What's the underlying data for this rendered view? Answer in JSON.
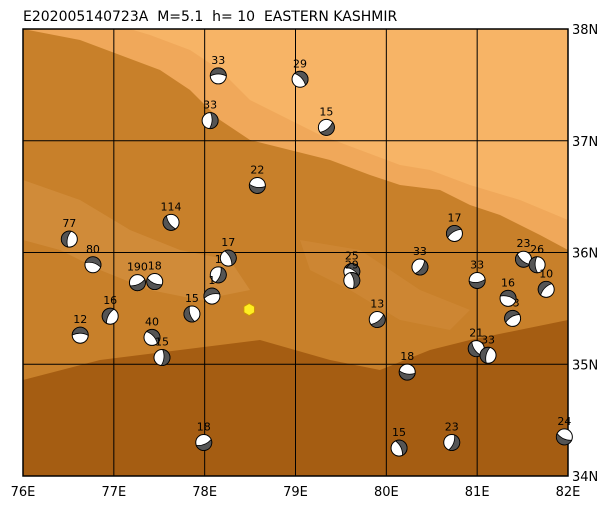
{
  "title": "E202005140723A  M=5.1  h= 10  EASTERN KASHMIR",
  "map": {
    "lonlim": [
      76,
      82
    ],
    "latlim": [
      34,
      38
    ],
    "lonticks": [
      {
        "value": 76,
        "label": "76E"
      },
      {
        "value": 77,
        "label": "77E"
      },
      {
        "value": 78,
        "label": "78E"
      },
      {
        "value": 79,
        "label": "79E"
      },
      {
        "value": 80,
        "label": "80E"
      },
      {
        "value": 81,
        "label": "81E"
      },
      {
        "value": 82,
        "label": "82E"
      }
    ],
    "latticks": [
      {
        "value": 34,
        "label": "34N"
      },
      {
        "value": 35,
        "label": "35N"
      },
      {
        "value": 36,
        "label": "36N"
      },
      {
        "value": 37,
        "label": "37N"
      },
      {
        "value": 38,
        "label": "38N"
      }
    ],
    "epicenter": {
      "lon": 78.49,
      "lat": 35.49,
      "color": "#ffee22"
    },
    "events": [
      {
        "label": "33",
        "lon": 78.15,
        "lat": 37.58
      },
      {
        "label": "29",
        "lon": 79.05,
        "lat": 37.55
      },
      {
        "label": "33",
        "lon": 78.06,
        "lat": 37.18
      },
      {
        "label": "15",
        "lon": 79.34,
        "lat": 37.12
      },
      {
        "label": "22",
        "lon": 78.58,
        "lat": 36.6
      },
      {
        "label": "114",
        "lon": 77.63,
        "lat": 36.27
      },
      {
        "label": "77",
        "lon": 76.51,
        "lat": 36.12
      },
      {
        "label": "17",
        "lon": 80.75,
        "lat": 36.17
      },
      {
        "label": "80",
        "lon": 76.77,
        "lat": 35.89
      },
      {
        "label": "17",
        "lon": 78.26,
        "lat": 35.95
      },
      {
        "label": "1",
        "lon": 78.15,
        "lat": 35.8
      },
      {
        "label": "190",
        "lon": 77.26,
        "lat": 35.73
      },
      {
        "label": "18",
        "lon": 77.45,
        "lat": 35.74
      },
      {
        "label": "15",
        "lon": 77.86,
        "lat": 35.45
      },
      {
        "label": "16",
        "lon": 76.96,
        "lat": 35.43
      },
      {
        "label": "1",
        "lon": 78.08,
        "lat": 35.61
      },
      {
        "label": "25",
        "lon": 79.62,
        "lat": 35.83
      },
      {
        "label": "29",
        "lon": 79.62,
        "lat": 35.75
      },
      {
        "label": "33",
        "lon": 80.37,
        "lat": 35.87
      },
      {
        "label": "33",
        "lon": 81.0,
        "lat": 35.75
      },
      {
        "label": "23",
        "lon": 81.51,
        "lat": 35.94
      },
      {
        "label": "26",
        "lon": 81.66,
        "lat": 35.89
      },
      {
        "label": "10",
        "lon": 81.76,
        "lat": 35.67
      },
      {
        "label": "12",
        "lon": 76.63,
        "lat": 35.26
      },
      {
        "label": "40",
        "lon": 77.42,
        "lat": 35.24
      },
      {
        "label": "15",
        "lon": 77.53,
        "lat": 35.06
      },
      {
        "label": "13",
        "lon": 79.9,
        "lat": 35.4
      },
      {
        "label": "18",
        "lon": 80.23,
        "lat": 34.93
      },
      {
        "label": "21",
        "lon": 80.99,
        "lat": 35.14
      },
      {
        "label": "33",
        "lon": 81.12,
        "lat": 35.08
      },
      {
        "label": "23",
        "lon": 81.39,
        "lat": 35.41
      },
      {
        "label": "16",
        "lon": 81.34,
        "lat": 35.59
      },
      {
        "label": "15",
        "lon": 80.14,
        "lat": 34.25
      },
      {
        "label": "23",
        "lon": 80.72,
        "lat": 34.3
      },
      {
        "label": "18",
        "lon": 77.99,
        "lat": 34.3
      },
      {
        "label": "24",
        "lon": 81.96,
        "lat": 34.35
      }
    ]
  }
}
